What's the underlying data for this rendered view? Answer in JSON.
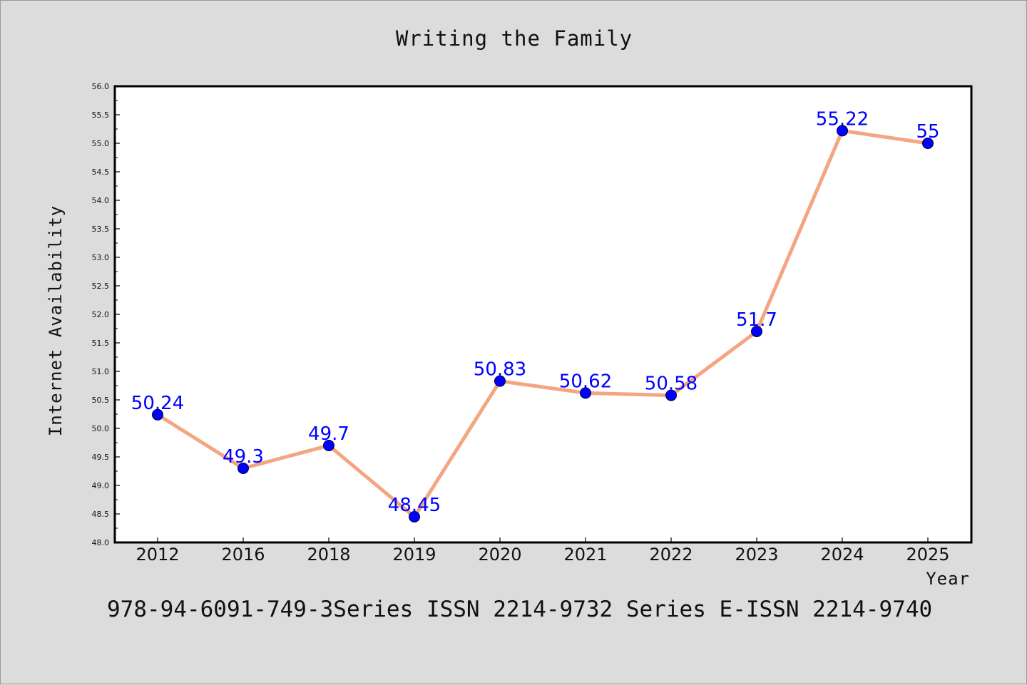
{
  "chart_data": {
    "type": "line",
    "title": "Writing the Family",
    "xlabel": "Year",
    "ylabel": "Internet Availability",
    "categories": [
      "2012",
      "2016",
      "2018",
      "2019",
      "2020",
      "2021",
      "2022",
      "2023",
      "2024",
      "2025"
    ],
    "series": [
      {
        "values": [
          50.24,
          49.3,
          49.7,
          48.45,
          50.83,
          50.62,
          50.58,
          51.7,
          55.22,
          55
        ],
        "data_labels": [
          "50.24",
          "49.3",
          "49.7",
          "48.45",
          "50.83",
          "50.62",
          "50.58",
          "51.7",
          "55.22",
          "55"
        ],
        "line_color": "#f4a582",
        "marker_color": "#0000ff"
      }
    ],
    "ylim": [
      48.0,
      56.0
    ],
    "yticks": [
      "48.0",
      "48.5",
      "49.0",
      "49.5",
      "50.0",
      "50.5",
      "51.0",
      "51.5",
      "52.0",
      "52.5",
      "53.0",
      "53.5",
      "54.0",
      "54.5",
      "55.0",
      "55.5",
      "56.0"
    ],
    "grid": false,
    "legend": "none",
    "label_color": "#0000ff",
    "background": "#dcdcdc",
    "plot_background": "#ffffff"
  },
  "footer": "978-94-6091-749-3Series ISSN 2214-9732 Series E-ISSN 2214-9740"
}
